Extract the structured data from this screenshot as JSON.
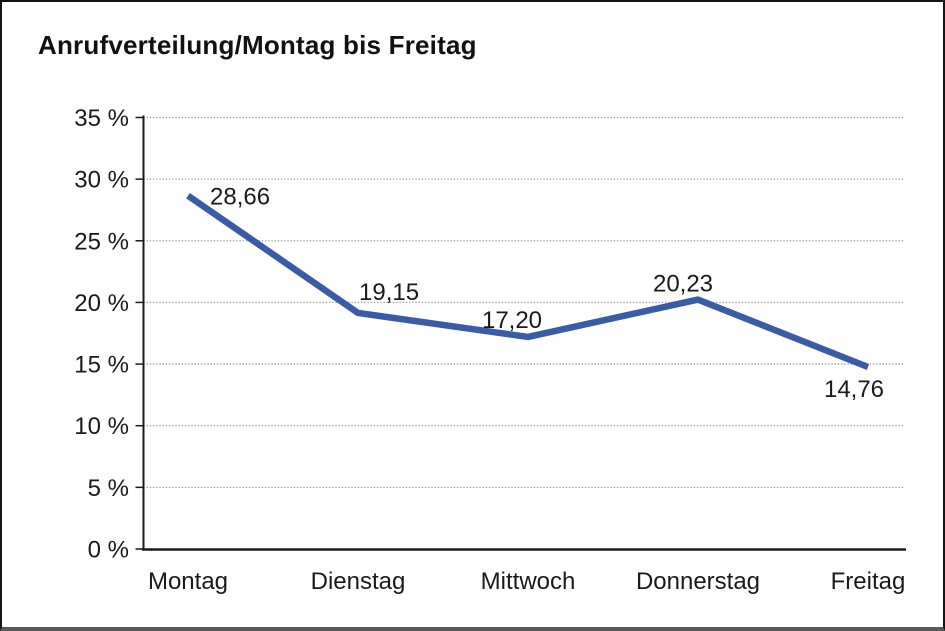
{
  "chart_data": {
    "type": "line",
    "title": "Anrufverteilung/Montag bis Freitag",
    "categories": [
      "Montag",
      "Dienstag",
      "Mittwoch",
      "Donnerstag",
      "Freitag"
    ],
    "values": [
      28.66,
      19.15,
      17.2,
      20.23,
      14.76
    ],
    "point_labels": [
      "28,66",
      "19,15",
      "17,20",
      "20,23",
      "14,76"
    ],
    "xlabel": "",
    "ylabel": "",
    "ylim": [
      0,
      35
    ],
    "y_ticks": [
      0,
      5,
      10,
      15,
      20,
      25,
      30,
      35
    ],
    "y_tick_labels": [
      "0 %",
      "5 %",
      "10 %",
      "15 %",
      "20 %",
      "25 %",
      "30 %",
      "35 %"
    ],
    "grid": "horizontal-dotted",
    "legend": "none",
    "line_color": "#3A5BA5",
    "axis_color": "#1a1a1a",
    "grid_color": "#8f8f8f",
    "text_color": "#1a1a1a"
  }
}
